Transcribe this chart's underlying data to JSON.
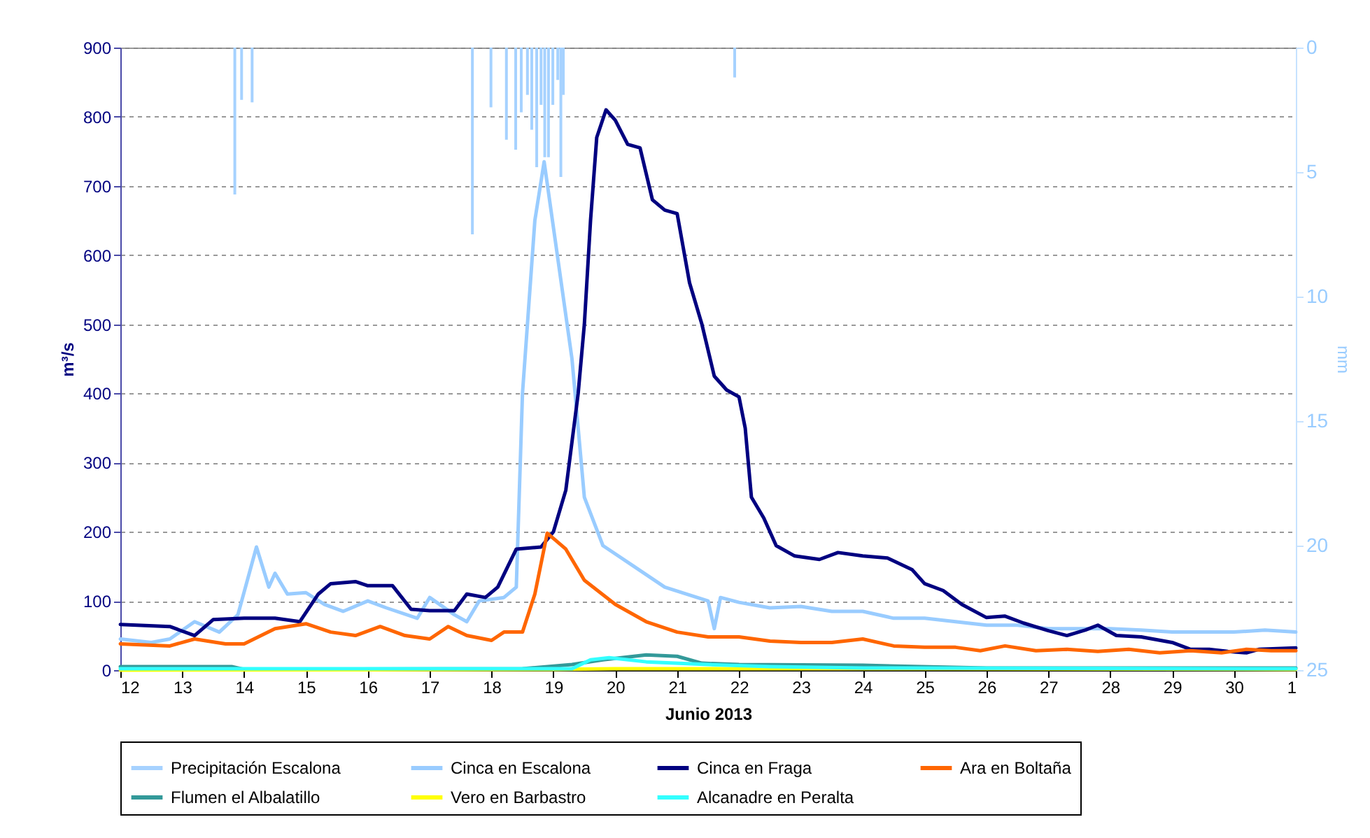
{
  "chart_data": {
    "type": "line",
    "xlabel": "Junio 2013",
    "ylabel": "m³/s",
    "y2label": "mm",
    "xlim": [
      "2013-06-12",
      "2013-07-01"
    ],
    "xticks": [
      {
        "value": "2013-06-12",
        "label": "12"
      },
      {
        "value": "2013-06-13",
        "label": "13"
      },
      {
        "value": "2013-06-14",
        "label": "14"
      },
      {
        "value": "2013-06-15",
        "label": "15"
      },
      {
        "value": "2013-06-16",
        "label": "16"
      },
      {
        "value": "2013-06-17",
        "label": "17"
      },
      {
        "value": "2013-06-18",
        "label": "18"
      },
      {
        "value": "2013-06-19",
        "label": "19"
      },
      {
        "value": "2013-06-20",
        "label": "20"
      },
      {
        "value": "2013-06-21",
        "label": "21"
      },
      {
        "value": "2013-06-22",
        "label": "22"
      },
      {
        "value": "2013-06-23",
        "label": "23"
      },
      {
        "value": "2013-06-24",
        "label": "24"
      },
      {
        "value": "2013-06-25",
        "label": "25"
      },
      {
        "value": "2013-06-26",
        "label": "26"
      },
      {
        "value": "2013-06-27",
        "label": "27"
      },
      {
        "value": "2013-06-28",
        "label": "28"
      },
      {
        "value": "2013-06-29",
        "label": "29"
      },
      {
        "value": "2013-06-30",
        "label": "30"
      },
      {
        "value": "2013-07-01",
        "label": "1"
      }
    ],
    "ylim": [
      0,
      900
    ],
    "yticks": [
      0,
      100,
      200,
      300,
      400,
      500,
      600,
      700,
      800,
      900
    ],
    "y2lim": [
      25,
      0
    ],
    "y2ticks": [
      0,
      5,
      10,
      15,
      20,
      25
    ],
    "grid": "y",
    "legend": "bottom",
    "series": [
      {
        "name": "Precipitación  Escalona",
        "type": "bar",
        "axis": "y2",
        "color": "#a6d2ff",
        "x": [
          "2013-06-13T20:24",
          "2013-06-13T23:02",
          "2013-06-14T03:07",
          "2013-06-17T16:34",
          "2013-06-17T23:46",
          "2013-06-18T05:46",
          "2013-06-18T09:22",
          "2013-06-18T11:31",
          "2013-06-18T13:55",
          "2013-06-18T15:36",
          "2013-06-18T17:31",
          "2013-06-18T19:12",
          "2013-06-18T20:38",
          "2013-06-18T22:05",
          "2013-06-18T23:46",
          "2013-06-19T01:41",
          "2013-06-19T02:53",
          "2013-06-19T03:50",
          "2013-06-21T22:19"
        ],
        "values": [
          5.9,
          2.1,
          2.2,
          7.5,
          2.4,
          3.7,
          4.1,
          2.6,
          1.9,
          3.3,
          4.8,
          2.3,
          4.4,
          4.4,
          2.3,
          1.3,
          5.2,
          1.9,
          1.2
        ]
      },
      {
        "name": "Cinca en Escalona",
        "color": "#99ccff",
        "x": [
          "2013-06-12T00:00",
          "2013-06-12T12:00",
          "2013-06-12T19:12",
          "2013-06-13T04:48",
          "2013-06-13T14:24",
          "2013-06-13T21:36",
          "2013-06-14T04:48",
          "2013-06-14T09:36",
          "2013-06-14T12:00",
          "2013-06-14T16:48",
          "2013-06-15T00:00",
          "2013-06-15T07:12",
          "2013-06-15T14:24",
          "2013-06-16T00:00",
          "2013-06-16T07:12",
          "2013-06-16T19:12",
          "2013-06-17T00:00",
          "2013-06-17T09:36",
          "2013-06-17T14:24",
          "2013-06-17T19:12",
          "2013-06-18T04:48",
          "2013-06-18T09:36",
          "2013-06-18T12:00",
          "2013-06-18T16:48",
          "2013-06-18T20:24",
          "2013-06-19T00:00",
          "2013-06-19T07:12",
          "2013-06-19T12:00",
          "2013-06-19T19:12",
          "2013-06-20T07:12",
          "2013-06-20T19:12",
          "2013-06-21T12:00",
          "2013-06-21T14:24",
          "2013-06-21T16:48",
          "2013-06-22T00:00",
          "2013-06-22T12:00",
          "2013-06-23T00:00",
          "2013-06-23T12:00",
          "2013-06-24T00:00",
          "2013-06-24T12:00",
          "2013-06-25T00:00",
          "2013-06-25T12:00",
          "2013-06-26T00:00",
          "2013-06-26T12:00",
          "2013-06-27T00:00",
          "2013-06-27T12:00",
          "2013-06-28T00:00",
          "2013-06-28T12:00",
          "2013-06-29T00:00",
          "2013-06-29T12:00",
          "2013-06-30T00:00",
          "2013-06-30T12:00",
          "2013-07-01T00:00"
        ],
        "values": [
          45,
          40,
          45,
          70,
          55,
          80,
          178,
          120,
          140,
          110,
          112,
          95,
          85,
          100,
          90,
          75,
          105,
          80,
          70,
          100,
          105,
          120,
          400,
          650,
          735,
          640,
          450,
          250,
          180,
          150,
          120,
          100,
          60,
          105,
          98,
          90,
          92,
          85,
          85,
          75,
          75,
          70,
          65,
          65,
          60,
          60,
          60,
          58,
          55,
          55,
          55,
          58,
          55
        ]
      },
      {
        "name": "Cinca en Fraga",
        "color": "#000080",
        "x": [
          "2013-06-12T00:00",
          "2013-06-12T19:12",
          "2013-06-13T04:48",
          "2013-06-13T12:00",
          "2013-06-14T00:00",
          "2013-06-14T12:00",
          "2013-06-14T21:36",
          "2013-06-15T04:48",
          "2013-06-15T09:36",
          "2013-06-15T19:12",
          "2013-06-16T00:00",
          "2013-06-16T09:36",
          "2013-06-16T16:48",
          "2013-06-17T00:00",
          "2013-06-17T09:36",
          "2013-06-17T14:24",
          "2013-06-17T21:36",
          "2013-06-18T02:24",
          "2013-06-18T09:36",
          "2013-06-18T19:12",
          "2013-06-19T00:00",
          "2013-06-19T04:48",
          "2013-06-19T09:36",
          "2013-06-19T12:00",
          "2013-06-19T14:24",
          "2013-06-19T16:48",
          "2013-06-19T20:24",
          "2013-06-20T00:00",
          "2013-06-20T04:48",
          "2013-06-20T09:36",
          "2013-06-20T14:24",
          "2013-06-20T19:12",
          "2013-06-21T00:00",
          "2013-06-21T04:48",
          "2013-06-21T09:36",
          "2013-06-21T14:24",
          "2013-06-21T19:12",
          "2013-06-22T00:00",
          "2013-06-22T02:24",
          "2013-06-22T04:48",
          "2013-06-22T09:36",
          "2013-06-22T14:24",
          "2013-06-22T21:36",
          "2013-06-23T07:12",
          "2013-06-23T14:24",
          "2013-06-24T00:00",
          "2013-06-24T09:36",
          "2013-06-24T19:12",
          "2013-06-25T00:00",
          "2013-06-25T07:12",
          "2013-06-25T14:24",
          "2013-06-26T00:00",
          "2013-06-26T07:12",
          "2013-06-26T14:24",
          "2013-06-27T00:00",
          "2013-06-27T07:12",
          "2013-06-27T14:24",
          "2013-06-27T19:12",
          "2013-06-28T02:24",
          "2013-06-28T12:00",
          "2013-06-29T00:00",
          "2013-06-29T07:12",
          "2013-06-29T14:24",
          "2013-06-29T21:36",
          "2013-06-30T04:48",
          "2013-06-30T09:36",
          "2013-07-01T00:00"
        ],
        "values": [
          66,
          63,
          50,
          73,
          75,
          75,
          70,
          110,
          125,
          128,
          122,
          122,
          88,
          86,
          86,
          110,
          105,
          120,
          175,
          178,
          200,
          260,
          400,
          500,
          650,
          770,
          810,
          795,
          760,
          755,
          680,
          665,
          660,
          560,
          500,
          425,
          405,
          395,
          350,
          250,
          220,
          180,
          165,
          160,
          170,
          165,
          162,
          145,
          125,
          115,
          95,
          76,
          78,
          68,
          57,
          50,
          58,
          65,
          50,
          48,
          40,
          30,
          30,
          27,
          25,
          30,
          32
        ]
      },
      {
        "name": "Ara en Boltaña",
        "color": "#ff6600",
        "x": [
          "2013-06-12T00:00",
          "2013-06-12T19:12",
          "2013-06-13T04:48",
          "2013-06-13T16:48",
          "2013-06-14T00:00",
          "2013-06-14T12:00",
          "2013-06-15T00:00",
          "2013-06-15T09:36",
          "2013-06-15T19:12",
          "2013-06-16T04:48",
          "2013-06-16T14:24",
          "2013-06-17T00:00",
          "2013-06-17T07:12",
          "2013-06-17T14:24",
          "2013-06-18T00:00",
          "2013-06-18T04:48",
          "2013-06-18T12:00",
          "2013-06-18T16:48",
          "2013-06-18T21:36",
          "2013-06-19T04:48",
          "2013-06-19T12:00",
          "2013-06-20T00:00",
          "2013-06-20T12:00",
          "2013-06-21T00:00",
          "2013-06-21T12:00",
          "2013-06-22T00:00",
          "2013-06-22T12:00",
          "2013-06-23T00:00",
          "2013-06-23T12:00",
          "2013-06-24T00:00",
          "2013-06-24T12:00",
          "2013-06-25T00:00",
          "2013-06-25T12:00",
          "2013-06-25T21:36",
          "2013-06-26T07:12",
          "2013-06-26T19:12",
          "2013-06-27T07:12",
          "2013-06-27T19:12",
          "2013-06-28T07:12",
          "2013-06-28T19:12",
          "2013-06-29T07:12",
          "2013-06-29T19:12",
          "2013-06-30T04:48",
          "2013-06-30T14:24",
          "2013-07-01T00:00"
        ],
        "values": [
          38,
          35,
          45,
          38,
          38,
          60,
          67,
          55,
          50,
          63,
          50,
          45,
          63,
          50,
          43,
          55,
          55,
          110,
          198,
          175,
          130,
          95,
          70,
          55,
          48,
          48,
          42,
          40,
          40,
          45,
          35,
          33,
          33,
          28,
          35,
          28,
          30,
          27,
          30,
          25,
          28,
          25,
          30,
          28,
          28
        ]
      },
      {
        "name": "Flumen el Albalatillo",
        "color": "#339999",
        "x": [
          "2013-06-12T00:00",
          "2013-06-13T19:12",
          "2013-06-14T00:00",
          "2013-06-18T12:00",
          "2013-06-19T07:12",
          "2013-06-19T19:12",
          "2013-06-20T12:00",
          "2013-06-21T00:00",
          "2013-06-21T09:36",
          "2013-06-22T00:00",
          "2013-06-24T00:00",
          "2013-06-26T00:00",
          "2013-07-01T00:00"
        ],
        "values": [
          5,
          5,
          1,
          2,
          8,
          15,
          22,
          20,
          10,
          8,
          7,
          3,
          3
        ]
      },
      {
        "name": "Vero en Barbastro",
        "color": "#ffff00",
        "x": [
          "2013-06-12T00:00",
          "2013-06-19T00:00",
          "2013-06-20T00:00",
          "2013-06-25T12:00",
          "2013-07-01T00:00"
        ],
        "values": [
          0,
          1,
          2,
          2,
          1
        ]
      },
      {
        "name": "Alcanadre en Peralta",
        "color": "#33ffff",
        "x": [
          "2013-06-12T00:00",
          "2013-06-19T07:12",
          "2013-06-19T14:24",
          "2013-06-19T21:36",
          "2013-06-20T12:00",
          "2013-06-21T12:00",
          "2013-06-22T12:00",
          "2013-06-24T00:00",
          "2013-07-01T00:00"
        ],
        "values": [
          2,
          2,
          15,
          18,
          12,
          8,
          5,
          3,
          2
        ]
      }
    ]
  }
}
